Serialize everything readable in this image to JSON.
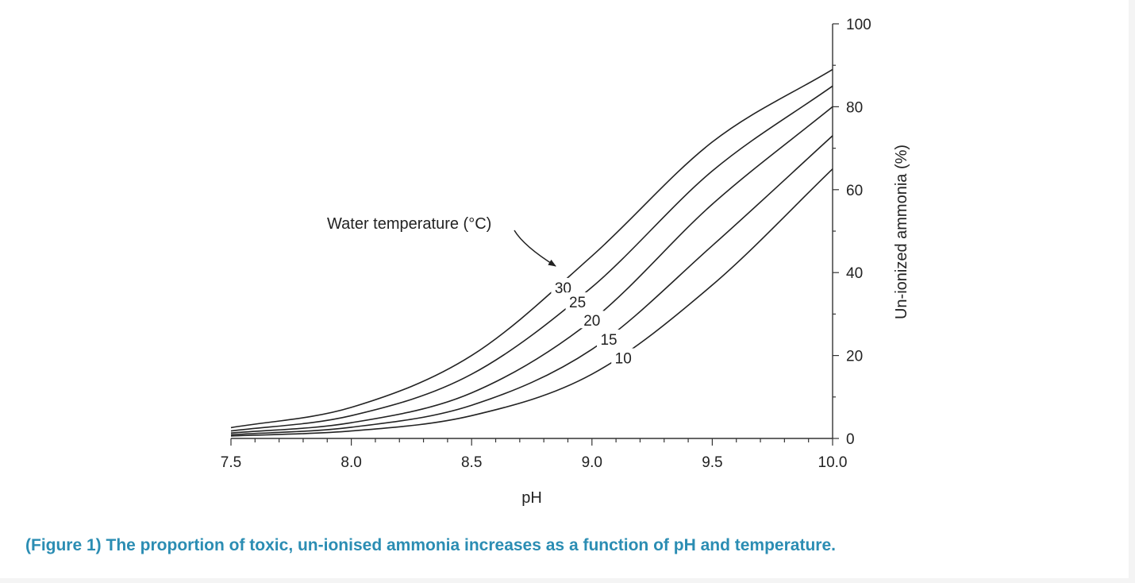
{
  "chart_data": {
    "type": "line",
    "xlabel": "pH",
    "ylabel": "Un-ionized ammonia (%)",
    "xlim": [
      7.5,
      10.0
    ],
    "ylim": [
      0,
      100
    ],
    "x_ticks": [
      "7.5",
      "8.0",
      "8.5",
      "9.0",
      "9.5",
      "10.0"
    ],
    "y_ticks": [
      "0",
      "20",
      "40",
      "60",
      "80",
      "100"
    ],
    "y_axis_side": "right",
    "grid": false,
    "legend": "none",
    "annotation": "Water temperature (°C)",
    "series": [
      {
        "name": "30",
        "x": [
          7.5,
          8.0,
          8.5,
          9.0,
          9.5,
          10.0
        ],
        "y": [
          2.6,
          7.5,
          20.0,
          44.0,
          71.5,
          89.0
        ]
      },
      {
        "name": "25",
        "x": [
          7.5,
          8.0,
          8.5,
          9.0,
          9.5,
          10.0
        ],
        "y": [
          1.8,
          5.5,
          15.5,
          36.5,
          64.5,
          85.0
        ]
      },
      {
        "name": "20",
        "x": [
          7.5,
          8.0,
          8.5,
          9.0,
          9.5,
          10.0
        ],
        "y": [
          1.3,
          3.8,
          11.0,
          28.5,
          56.5,
          80.0
        ]
      },
      {
        "name": "15",
        "x": [
          7.5,
          8.0,
          8.5,
          9.0,
          9.5,
          10.0
        ],
        "y": [
          0.9,
          2.7,
          8.0,
          21.5,
          46.5,
          73.0
        ]
      },
      {
        "name": "10",
        "x": [
          7.5,
          8.0,
          8.5,
          9.0,
          9.5,
          10.0
        ],
        "y": [
          0.6,
          1.8,
          5.5,
          15.5,
          37.0,
          65.0
        ]
      }
    ]
  },
  "caption": "(Figure 1) The proportion of toxic, un-ionised ammonia increases as a function of pH and temperature."
}
